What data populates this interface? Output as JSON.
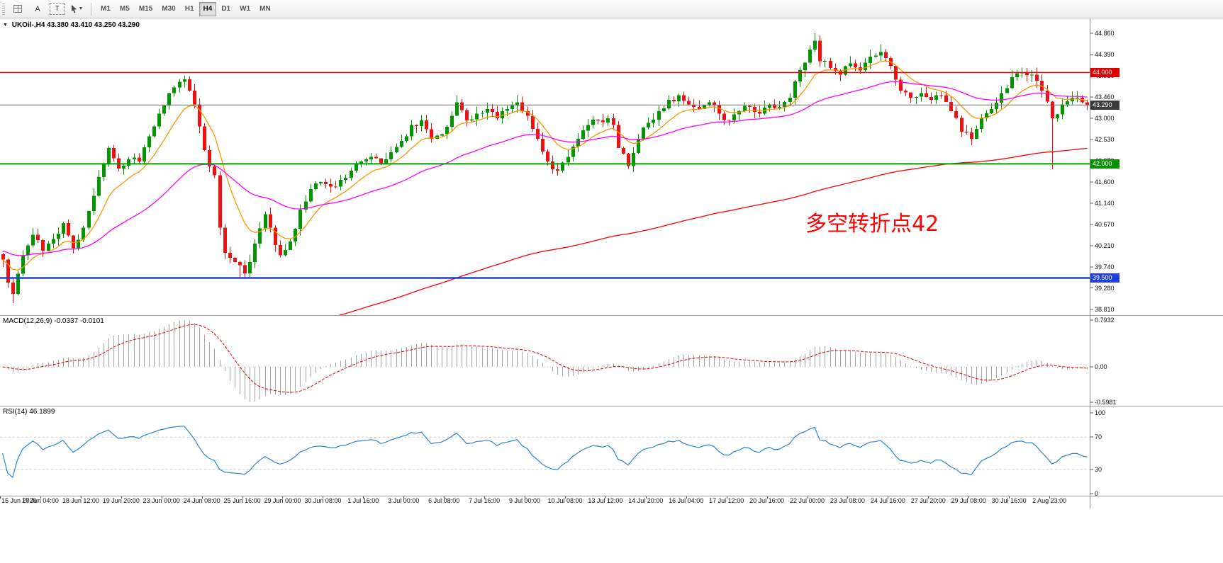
{
  "toolbar": {
    "buttons": [
      {
        "id": "annotation-tool",
        "label": "A"
      },
      {
        "id": "text-tool",
        "label": "T"
      }
    ],
    "timeframes": [
      {
        "label": "M1",
        "active": false
      },
      {
        "label": "M5",
        "active": false
      },
      {
        "label": "M15",
        "active": false
      },
      {
        "label": "M30",
        "active": false
      },
      {
        "label": "H1",
        "active": false
      },
      {
        "label": "H4",
        "active": true
      },
      {
        "label": "D1",
        "active": false
      },
      {
        "label": "W1",
        "active": false
      },
      {
        "label": "MN",
        "active": false
      }
    ]
  },
  "chart": {
    "symbol_period": "UKOil-,H4",
    "open": "43.380",
    "high": "43.410",
    "low": "43.250",
    "close": "43.290",
    "annotation": {
      "text": "多空转折点42",
      "color": "#ff0000"
    }
  },
  "price_scale": {
    "ticks": [
      "44.860",
      "44.390",
      "43.930",
      "43.460",
      "43.000",
      "42.530",
      "42.070",
      "41.600",
      "41.140",
      "40.670",
      "40.210",
      "39.740",
      "39.280",
      "38.810"
    ],
    "badges": [
      {
        "value": "44.000",
        "color": "#dd0000"
      },
      {
        "value": "43.290",
        "color": "#3c3c3c"
      },
      {
        "value": "42.000",
        "color": "#089000"
      },
      {
        "value": "39.500",
        "color": "#2040dd"
      }
    ]
  },
  "indicators": {
    "macd": {
      "title": "MACD(12,26,9)",
      "value1": "-0.0337",
      "value2": "-0.0101",
      "scale": [
        "0.7932",
        "0.00",
        "-0.5981"
      ],
      "ylim": [
        -0.5981,
        0.7932
      ]
    },
    "rsi": {
      "title": "RSI(14)",
      "value": "46.1899",
      "scale": [
        "100",
        "70",
        "30",
        "0"
      ],
      "levels": [
        70,
        30
      ],
      "ylim": [
        0,
        100
      ]
    }
  },
  "time_axis": {
    "labels": [
      "15 Jun 2020",
      "17 Jun 04:00",
      "18 Jun 12:00",
      "19 Jun 20:00",
      "23 Jun 00:00",
      "24 Jun 08:00",
      "25 Jun 16:00",
      "29 Jun 00:00",
      "30 Jun 08:00",
      "1 Jul 16:00",
      "3 Jul 00:00",
      "6 Jul 08:00",
      "7 Jul 16:00",
      "9 Jul 00:00",
      "10 Jul 08:00",
      "13 Jul 12:00",
      "14 Jul 20:00",
      "16 Jul 04:00",
      "17 Jul 12:00",
      "20 Jul 16:00",
      "22 Jul 00:00",
      "23 Jul 08:00",
      "24 Jul 16:00",
      "27 Jul 20:00",
      "29 Jul 08:00",
      "30 Jul 16:00",
      "2 Aug 23:00"
    ],
    "bars_per_label": 8
  },
  "chart_data": {
    "type": "candlestick",
    "symbol": "UKOil-",
    "timeframe": "H4",
    "bars": 216,
    "price_range": [
      38.81,
      44.86
    ],
    "last_ohlc": {
      "open": 43.38,
      "high": 43.41,
      "low": 43.25,
      "close": 43.29
    },
    "waypoints": [
      [
        0,
        39.9
      ],
      [
        1,
        39.4
      ],
      [
        2,
        39.15
      ],
      [
        4,
        40.0
      ],
      [
        6,
        40.45
      ],
      [
        8,
        40.1
      ],
      [
        10,
        40.35
      ],
      [
        12,
        40.7
      ],
      [
        14,
        40.15
      ],
      [
        16,
        40.6
      ],
      [
        18,
        41.3
      ],
      [
        20,
        42.0
      ],
      [
        21,
        42.35
      ],
      [
        23,
        41.9
      ],
      [
        25,
        42.1
      ],
      [
        27,
        42.05
      ],
      [
        29,
        42.6
      ],
      [
        31,
        43.1
      ],
      [
        33,
        43.55
      ],
      [
        35,
        43.8
      ],
      [
        36,
        43.85
      ],
      [
        38,
        43.3
      ],
      [
        40,
        42.3
      ],
      [
        42,
        41.75
      ],
      [
        43,
        40.6
      ],
      [
        44,
        40.05
      ],
      [
        46,
        39.85
      ],
      [
        48,
        39.6
      ],
      [
        50,
        40.25
      ],
      [
        52,
        40.9
      ],
      [
        53,
        40.6
      ],
      [
        55,
        40.0
      ],
      [
        57,
        40.3
      ],
      [
        59,
        41.0
      ],
      [
        61,
        41.45
      ],
      [
        63,
        41.6
      ],
      [
        65,
        41.5
      ],
      [
        67,
        41.65
      ],
      [
        69,
        41.85
      ],
      [
        71,
        42.05
      ],
      [
        73,
        42.15
      ],
      [
        75,
        42.0
      ],
      [
        77,
        42.25
      ],
      [
        79,
        42.5
      ],
      [
        81,
        42.85
      ],
      [
        83,
        42.95
      ],
      [
        85,
        42.55
      ],
      [
        87,
        42.65
      ],
      [
        89,
        43.05
      ],
      [
        90,
        43.35
      ],
      [
        92,
        42.95
      ],
      [
        94,
        43.1
      ],
      [
        96,
        43.2
      ],
      [
        98,
        43.0
      ],
      [
        100,
        43.2
      ],
      [
        102,
        43.35
      ],
      [
        104,
        43.05
      ],
      [
        106,
        42.55
      ],
      [
        108,
        42.05
      ],
      [
        110,
        41.85
      ],
      [
        112,
        42.15
      ],
      [
        114,
        42.55
      ],
      [
        116,
        42.85
      ],
      [
        118,
        42.95
      ],
      [
        120,
        43.0
      ],
      [
        121,
        42.85
      ],
      [
        122,
        42.35
      ],
      [
        124,
        41.95
      ],
      [
        126,
        42.55
      ],
      [
        128,
        42.9
      ],
      [
        130,
        43.15
      ],
      [
        132,
        43.4
      ],
      [
        134,
        43.5
      ],
      [
        136,
        43.3
      ],
      [
        138,
        43.2
      ],
      [
        140,
        43.35
      ],
      [
        142,
        43.1
      ],
      [
        144,
        42.95
      ],
      [
        146,
        43.15
      ],
      [
        148,
        43.25
      ],
      [
        150,
        43.1
      ],
      [
        152,
        43.3
      ],
      [
        154,
        43.25
      ],
      [
        156,
        43.45
      ],
      [
        158,
        44.05
      ],
      [
        160,
        44.5
      ],
      [
        161,
        44.7
      ],
      [
        162,
        44.25
      ],
      [
        164,
        44.1
      ],
      [
        166,
        43.95
      ],
      [
        168,
        44.2
      ],
      [
        170,
        44.05
      ],
      [
        172,
        44.35
      ],
      [
        174,
        44.45
      ],
      [
        176,
        44.15
      ],
      [
        178,
        43.6
      ],
      [
        180,
        43.45
      ],
      [
        182,
        43.55
      ],
      [
        184,
        43.4
      ],
      [
        186,
        43.5
      ],
      [
        188,
        43.15
      ],
      [
        190,
        42.7
      ],
      [
        192,
        42.55
      ],
      [
        194,
        43.0
      ],
      [
        196,
        43.2
      ],
      [
        198,
        43.55
      ],
      [
        200,
        43.9
      ],
      [
        202,
        44.0
      ],
      [
        204,
        43.95
      ],
      [
        206,
        43.6
      ],
      [
        208,
        43.0
      ],
      [
        210,
        43.3
      ],
      [
        212,
        43.45
      ],
      [
        214,
        43.35
      ],
      [
        215,
        43.29
      ]
    ],
    "wick_overrides": {
      "2": {
        "low": 38.95
      },
      "36": {
        "high": 43.93
      },
      "47": {
        "low": 39.5
      },
      "49": {
        "low": 39.52
      },
      "161": {
        "high": 44.86
      },
      "174": {
        "high": 44.62
      },
      "208": {
        "low": 41.88
      }
    },
    "levels": [
      {
        "price": 44.0,
        "color": "#ee0000",
        "width": 1.5
      },
      {
        "price": 42.0,
        "color": "#00a000",
        "width": 2
      },
      {
        "price": 39.5,
        "color": "#2040dd",
        "width": 2.5
      },
      {
        "price": 43.29,
        "color": "#707070",
        "width": 1
      }
    ],
    "overlays": [
      {
        "name": "ma-fast",
        "color": "#ff9500",
        "period": 10,
        "init": null
      },
      {
        "name": "ma-mid",
        "color": "#ff00ff",
        "period": 40,
        "init": 40.1
      },
      {
        "name": "ma-slow",
        "color": "#ff0000",
        "period": 190,
        "init": 36.0
      }
    ],
    "seed": 42
  },
  "colors": {
    "up": "#009600",
    "down": "#ee1111",
    "macd_hist": "#a6a6a6",
    "macd_signal": "#dd0000",
    "rsi_line": "#2a85d0",
    "level_dash": "#c8c8c8",
    "separator": "#9e9e9e"
  }
}
